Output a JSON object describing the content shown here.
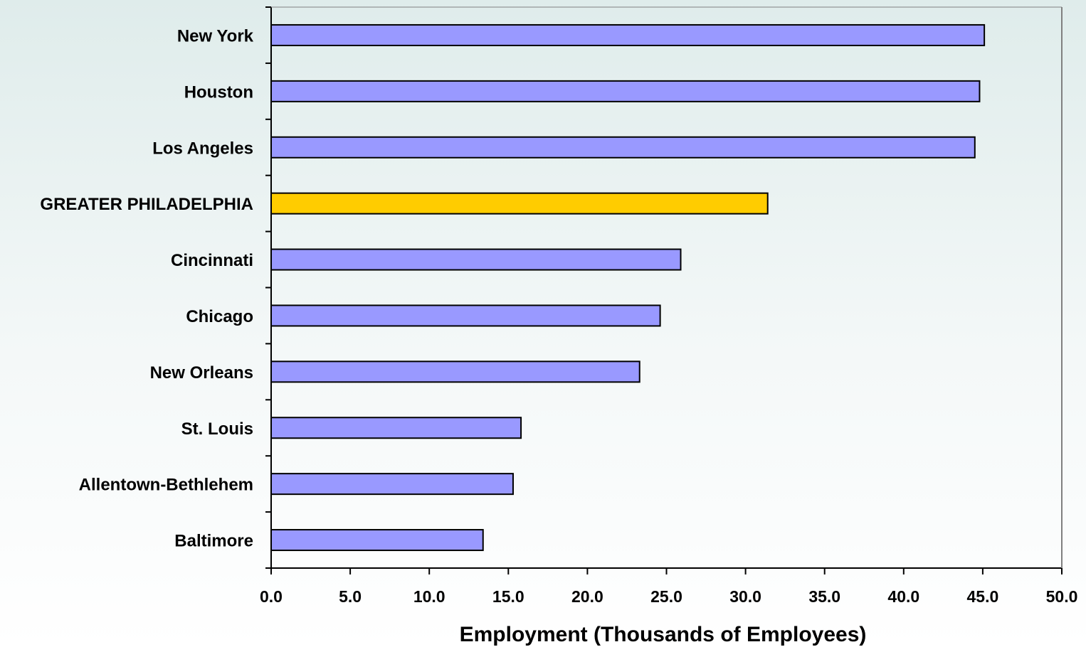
{
  "chart_data": {
    "type": "bar",
    "orientation": "horizontal",
    "categories": [
      "New York",
      "Houston",
      "Los Angeles",
      "GREATER PHILADELPHIA",
      "Cincinnati",
      "Chicago",
      "New Orleans",
      "St. Louis",
      "Allentown-Bethlehem",
      "Baltimore"
    ],
    "values": [
      45.1,
      44.8,
      44.5,
      31.4,
      25.9,
      24.6,
      23.3,
      15.8,
      15.3,
      13.4
    ],
    "highlight_category": "GREATER PHILADELPHIA",
    "colors": {
      "bar": "#9999ff",
      "highlight": "#ffcc00",
      "outline": "#000000"
    },
    "xlabel": "Employment (Thousands of Employees)",
    "ylabel": "",
    "xlim": [
      0,
      50
    ],
    "x_ticks": [
      "0.0",
      "5.0",
      "10.0",
      "15.0",
      "20.0",
      "25.0",
      "30.0",
      "35.0",
      "40.0",
      "45.0",
      "50.0"
    ],
    "grid": false,
    "legend": "none"
  }
}
